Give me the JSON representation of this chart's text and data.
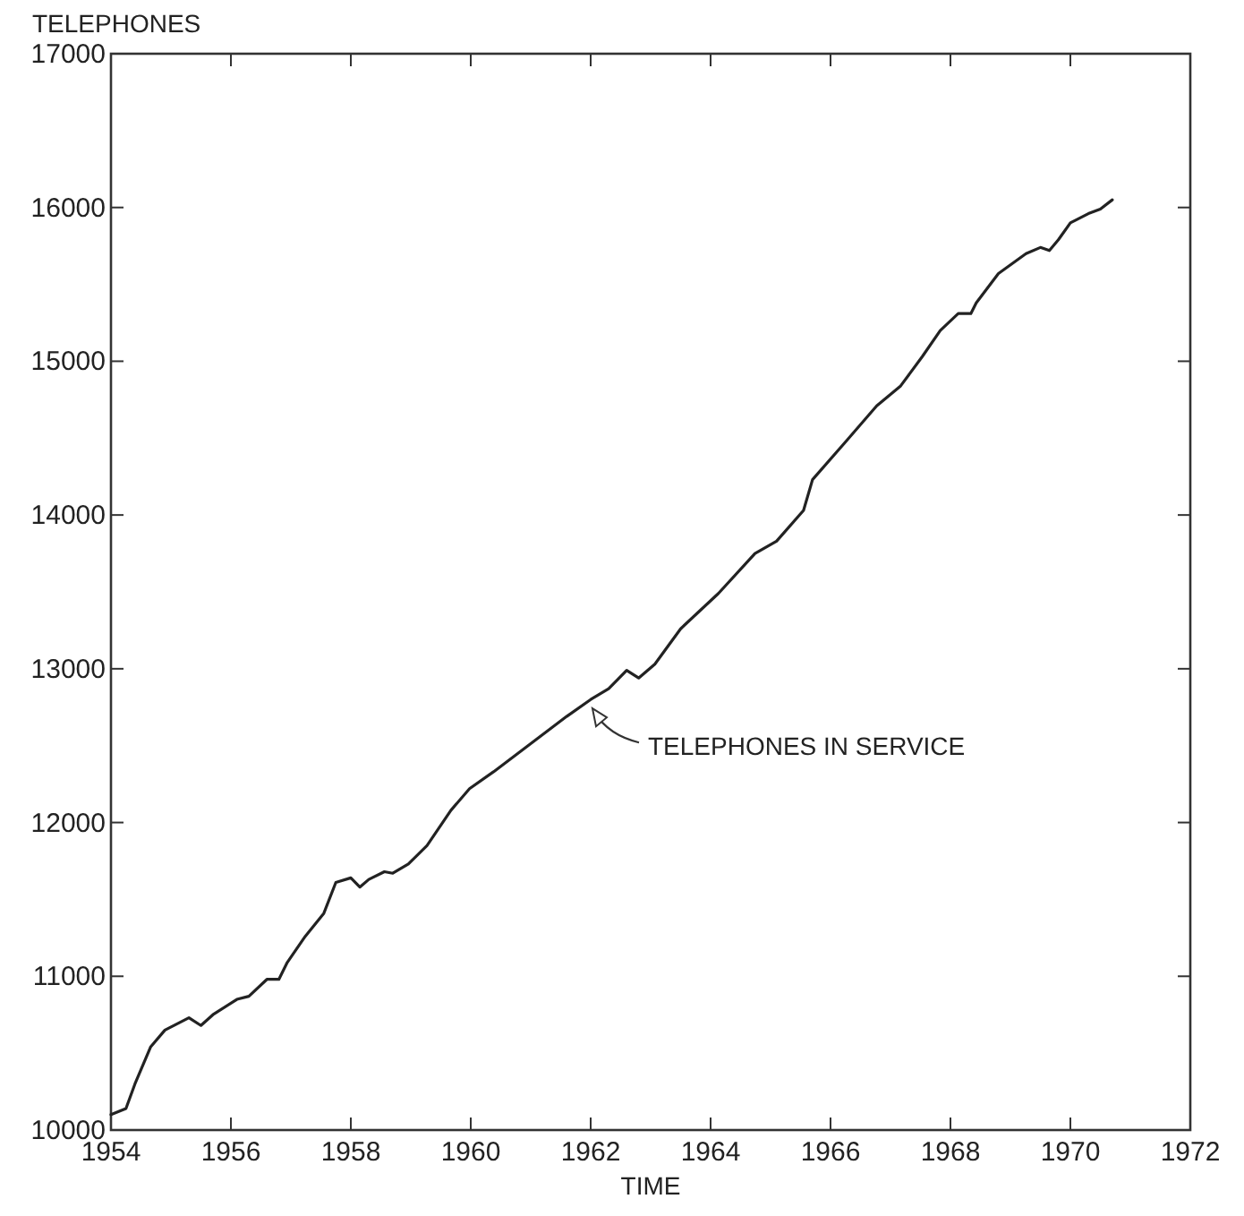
{
  "chart_data": {
    "type": "line",
    "ylabel": "TELEPHONES",
    "xlabel": "TIME",
    "xlim": [
      1954,
      1972
    ],
    "ylim": [
      10000,
      17000
    ],
    "xticks": [
      1954,
      1956,
      1958,
      1960,
      1962,
      1964,
      1966,
      1968,
      1970,
      1972
    ],
    "yticks": [
      10000,
      11000,
      12000,
      13000,
      14000,
      15000,
      16000,
      17000
    ],
    "annotations": [
      {
        "text": "TELEPHONES IN SERVICE",
        "x": 1962,
        "y": 12800
      }
    ],
    "series": [
      {
        "color": "#222222",
        "x": [
          1954.0,
          1954.25,
          1954.4,
          1954.66,
          1954.9,
          1955.3,
          1955.5,
          1955.7,
          1956.1,
          1956.3,
          1956.6,
          1956.8,
          1956.94,
          1957.24,
          1957.55,
          1957.75,
          1958.0,
          1958.15,
          1958.3,
          1958.56,
          1958.7,
          1958.96,
          1959.27,
          1959.67,
          1959.98,
          1960.38,
          1960.99,
          1961.6,
          1962.0,
          1962.3,
          1962.6,
          1962.8,
          1963.07,
          1963.5,
          1964.13,
          1964.74,
          1965.1,
          1965.55,
          1965.7,
          1966.26,
          1966.77,
          1967.17,
          1967.53,
          1967.83,
          1968.13,
          1968.34,
          1968.43,
          1968.8,
          1969.26,
          1969.5,
          1969.65,
          1969.8,
          1970.0,
          1970.3,
          1970.5,
          1970.7
        ],
        "values": [
          10100,
          10140,
          10300,
          10540,
          10650,
          10730,
          10680,
          10750,
          10850,
          10870,
          10980,
          10980,
          11090,
          11260,
          11410,
          11610,
          11640,
          11580,
          11630,
          11680,
          11670,
          11730,
          11850,
          12080,
          12220,
          12330,
          12510,
          12690,
          12800,
          12870,
          12990,
          12940,
          13030,
          13260,
          13490,
          13750,
          13830,
          14030,
          14230,
          14480,
          14710,
          14840,
          15030,
          15200,
          15310,
          15310,
          15380,
          15570,
          15700,
          15740,
          15720,
          15790,
          15900,
          15960,
          15990,
          16050
        ]
      }
    ]
  }
}
